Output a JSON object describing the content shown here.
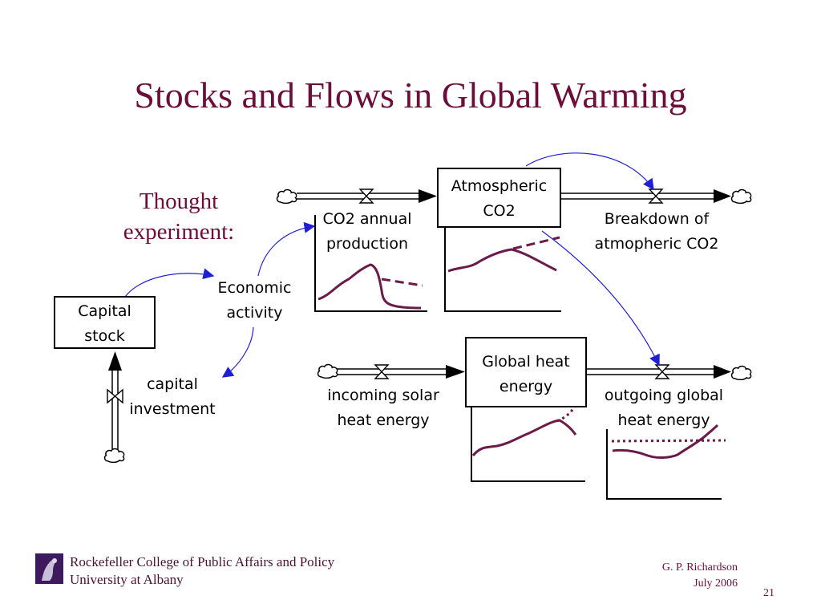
{
  "slide": {
    "title": "Stocks and Flows in Global Warming",
    "subtitle_line1": "Thought",
    "subtitle_line2": "experiment:",
    "page_number": "21"
  },
  "stocks": {
    "capital": [
      "Capital",
      "stock"
    ],
    "atmospheric_co2": [
      "Atmospheric",
      "CO2"
    ],
    "global_heat": [
      "Global heat",
      "energy"
    ]
  },
  "flows": {
    "capital_investment": [
      "capital",
      "investment"
    ],
    "co2_production": [
      "CO2 annual",
      "production"
    ],
    "breakdown": [
      "Breakdown of",
      "atmopheric CO2"
    ],
    "incoming_solar": [
      "incoming solar",
      "heat energy"
    ],
    "outgoing_global": [
      "outgoing global",
      "heat energy"
    ]
  },
  "auxiliaries": {
    "economic_activity": [
      "Economic",
      "activity"
    ]
  },
  "footer": {
    "institution_line1": "Rockefeller College of Public Affairs and Policy",
    "institution_line2": "University at Albany",
    "author": "G. P. Richardson",
    "date": "July 2006"
  },
  "colors": {
    "title": "#6b0f3a",
    "graph_line": "#6b1b4a",
    "link_arrow": "#1f1fd6",
    "footer_text": "#4b1030"
  }
}
